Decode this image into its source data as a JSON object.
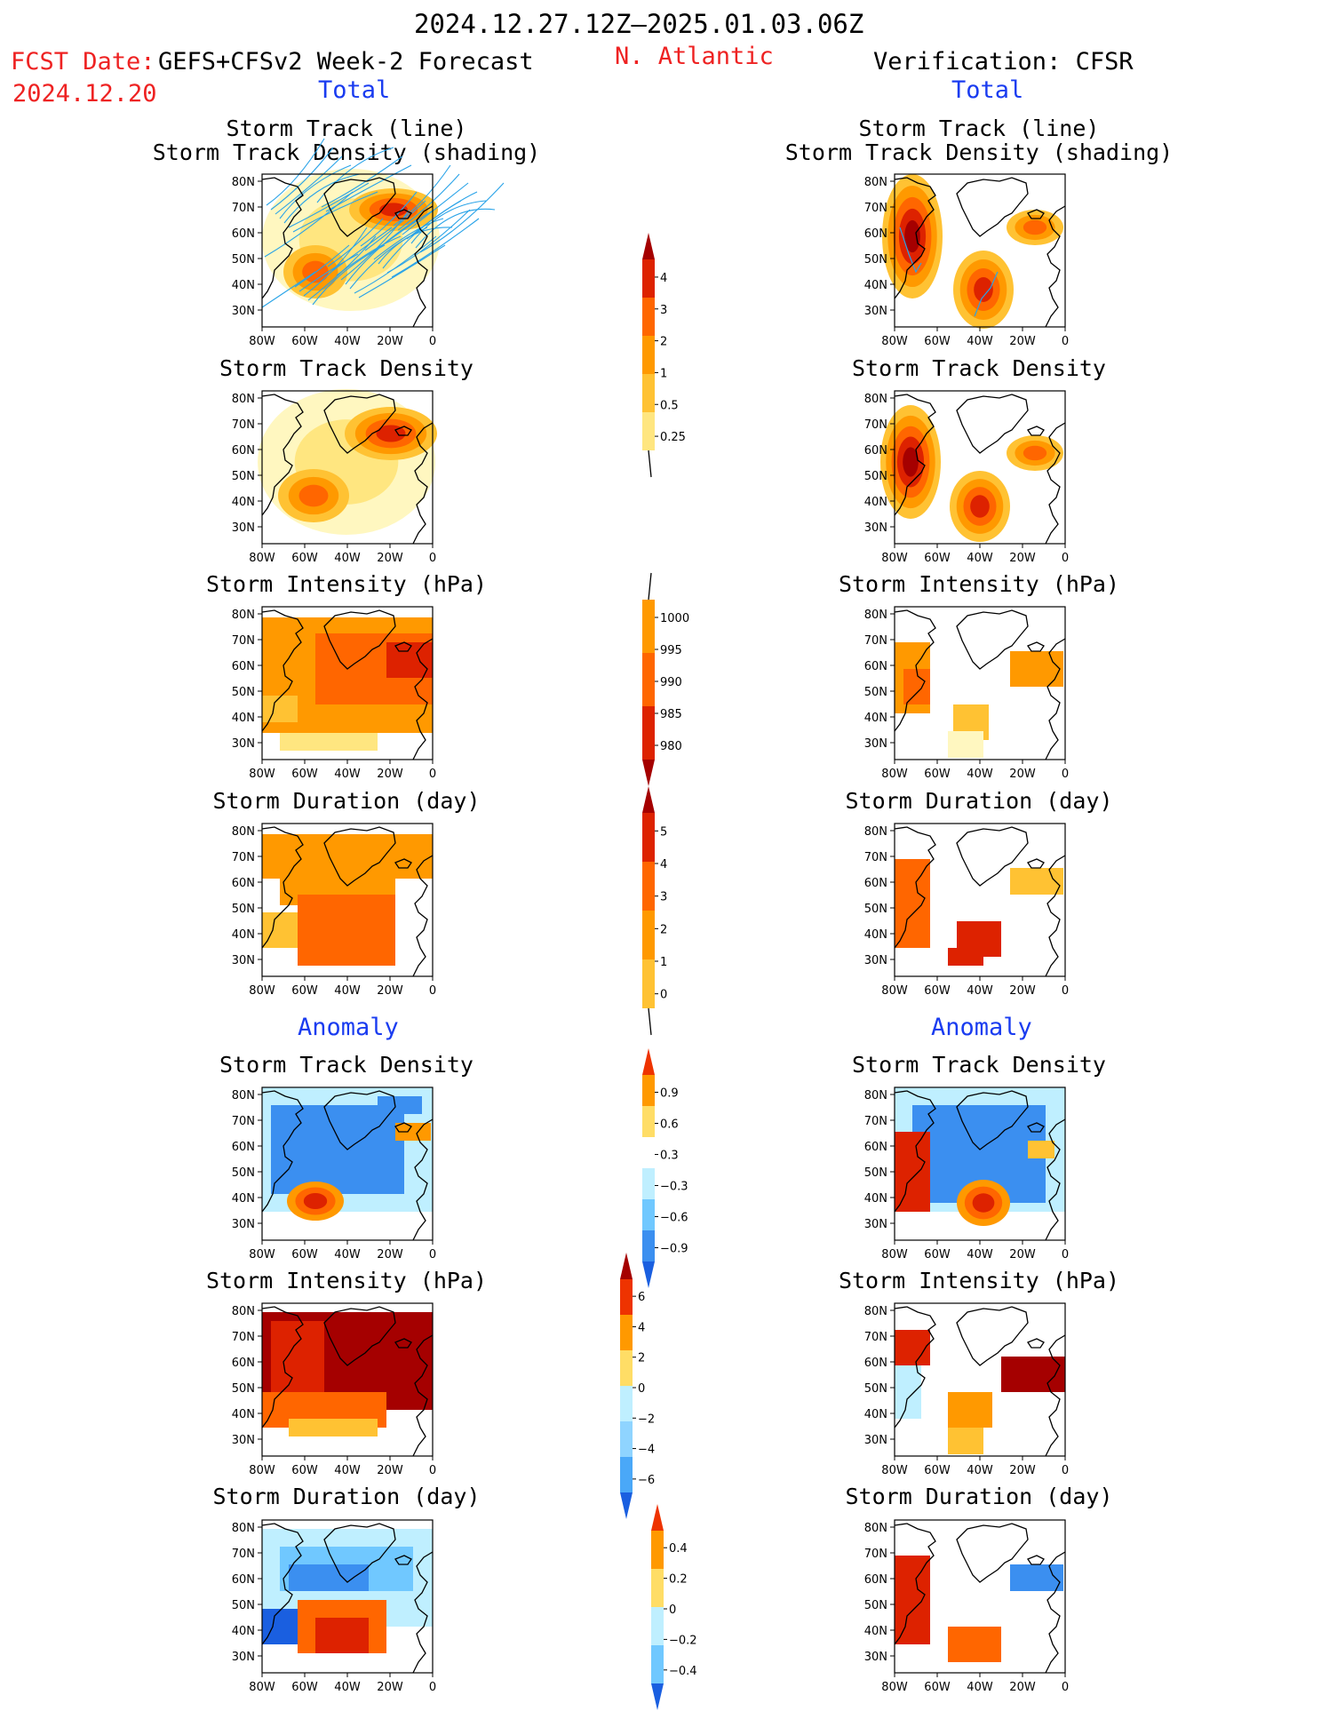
{
  "header": {
    "date_range": "2024.12.27.12Z–2025.01.03.06Z",
    "fcst_label": "FCST Date:",
    "fcst_date": "2024.12.20",
    "model": "GEFS+CFSv2 Week-2 Forecast",
    "region": "N. Atlantic",
    "verification": "Verification: CFSR"
  },
  "sections": {
    "total": "Total",
    "anomaly": "Anomaly"
  },
  "panel_titles": {
    "track_line": "Storm Track (line)",
    "track_shading": "Storm Track Density (shading)",
    "density": "Storm Track Density",
    "intensity": "Storm Intensity (hPa)",
    "duration": "Storm Duration (day)"
  },
  "axes": {
    "lat_labels": [
      "80N",
      "70N",
      "60N",
      "50N",
      "40N",
      "30N"
    ],
    "lon_labels": [
      "80W",
      "60W",
      "40W",
      "20W",
      "0"
    ]
  },
  "colorbars": [
    {
      "labels": [
        "4",
        "3",
        "2",
        "1",
        "0.5",
        "0.25"
      ],
      "colors": [
        "#a50000",
        "#dd2200",
        "#ff6600",
        "#ff9900",
        "#ffc233",
        "#ffe680",
        "#fff7c0"
      ]
    },
    {
      "labels": [
        "1000",
        "995",
        "990",
        "985",
        "980"
      ],
      "colors": [
        "#fff7c0",
        "#ff9900",
        "#ff6600",
        "#dd2200",
        "#a50000"
      ]
    },
    {
      "labels": [
        "5",
        "4",
        "3",
        "2",
        "1",
        "0"
      ],
      "colors": [
        "#a50000",
        "#dd2200",
        "#ff6600",
        "#ff9900",
        "#ffc233",
        "#fff7c0"
      ]
    },
    {
      "labels": [
        "0.9",
        "0.6",
        "0.3",
        "−0.3",
        "−0.6",
        "−0.9"
      ],
      "colors": [
        "#ee3300",
        "#ff9900",
        "#ffdd66",
        "#ffffff",
        "#bfefff",
        "#70c8ff",
        "#3b8ff0",
        "#1a5fe0"
      ]
    },
    {
      "labels": [
        "6",
        "4",
        "2",
        "0",
        "−2",
        "−4",
        "−6"
      ],
      "colors": [
        "#a50000",
        "#ee3300",
        "#ff9900",
        "#ffdd66",
        "#bfefff",
        "#8fd4ff",
        "#4aa8f8",
        "#1a5fe0"
      ]
    },
    {
      "labels": [
        "0.4",
        "0.2",
        "0",
        "−0.2",
        "−0.4"
      ],
      "colors": [
        "#ee3300",
        "#ff9900",
        "#ffdd66",
        "#bfefff",
        "#70c8ff",
        "#1a5fe0"
      ]
    }
  ]
}
